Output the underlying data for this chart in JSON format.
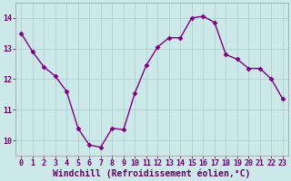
{
  "x": [
    0,
    1,
    2,
    3,
    4,
    5,
    6,
    7,
    8,
    9,
    10,
    11,
    12,
    13,
    14,
    15,
    16,
    17,
    18,
    19,
    20,
    21,
    22,
    23
  ],
  "y": [
    13.5,
    12.9,
    12.4,
    12.1,
    11.6,
    10.4,
    9.85,
    9.78,
    10.4,
    10.35,
    11.55,
    12.45,
    13.05,
    13.35,
    13.35,
    14.0,
    14.05,
    13.85,
    12.8,
    12.65,
    12.35,
    12.35,
    12.0,
    11.35
  ],
  "line_color": "#800080",
  "marker": "D",
  "markersize": 2.5,
  "linewidth": 1.0,
  "bg_color": "#cce8e8",
  "grid_color": "#aacccc",
  "xlabel": "Windchill (Refroidissement éolien,°C)",
  "xlabel_fontsize": 7,
  "tick_fontsize": 6,
  "ylim": [
    9.5,
    14.5
  ],
  "xlim": [
    -0.5,
    23.5
  ],
  "yticks": [
    10,
    11,
    12,
    13,
    14
  ],
  "xticks": [
    0,
    1,
    2,
    3,
    4,
    5,
    6,
    7,
    8,
    9,
    10,
    11,
    12,
    13,
    14,
    15,
    16,
    17,
    18,
    19,
    20,
    21,
    22,
    23
  ]
}
